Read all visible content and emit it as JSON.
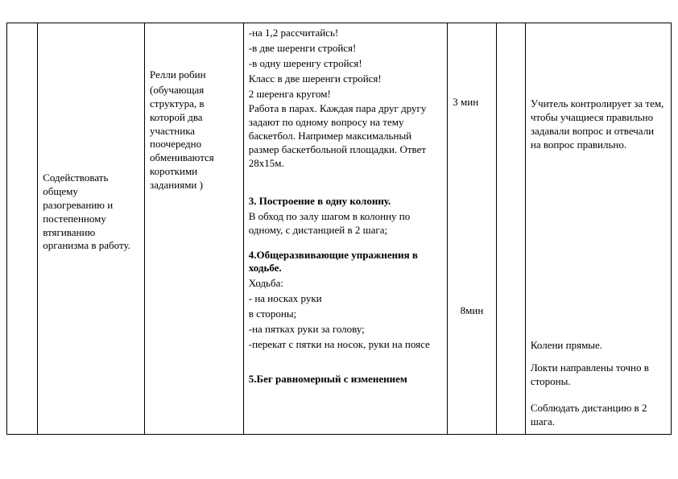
{
  "table": {
    "col1": {
      "text": "Содействовать общему разогреванию и постепенному втягиванию организма в работу."
    },
    "col2": {
      "title": "Релли робин",
      "desc": "(обучающая структура, в которой два участника поочередно обмениваются короткими заданиями )"
    },
    "col3": {
      "block1_l1": "-на 1,2 рассчитайсь!",
      "block1_l2": "-в две шеренги стройся!",
      "block1_l3": "-в одну шеренгу стройся!",
      "block1_l4": "Класс в две шеренги стройся!",
      "block1_l5": " 2 шеренга кругом!",
      "block1_l6": "Работа в парах. Каждая пара друг другу задают по одному вопросу на тему баскетбол. Например максимальный размер баскетбольной площадки. Ответ 28х15м.",
      "block3_t": "3. Построение в одну колонну.",
      "block3_b": "В обход по залу шагом в колонну по одному, с дистанцией в 2 шага;",
      "block4_t": "4.Общеразвивающие упражнения в ходьбе.",
      "block4_h": "Ходьба:",
      "block4_l1": "- на носках руки",
      "block4_l1b": " в стороны;",
      "block4_l2": "-на пятках руки за голову;",
      "block4_l3": "-перекат с пятки на носок, руки на поясе",
      "block5_t": "5.Бег равномерный с изменением"
    },
    "col4": {
      "t1": "3 мин",
      "t2": "8мин"
    },
    "col6": {
      "p1": "Учитель контролирует за тем, чтобы учащиеся правильно задавали вопрос и отвечали на вопрос правильно.",
      "p2": "Колени прямые.",
      "p3": "Локти направлены точно в стороны.",
      "p4": "Соблюдать дистанцию в 2 шага."
    }
  }
}
